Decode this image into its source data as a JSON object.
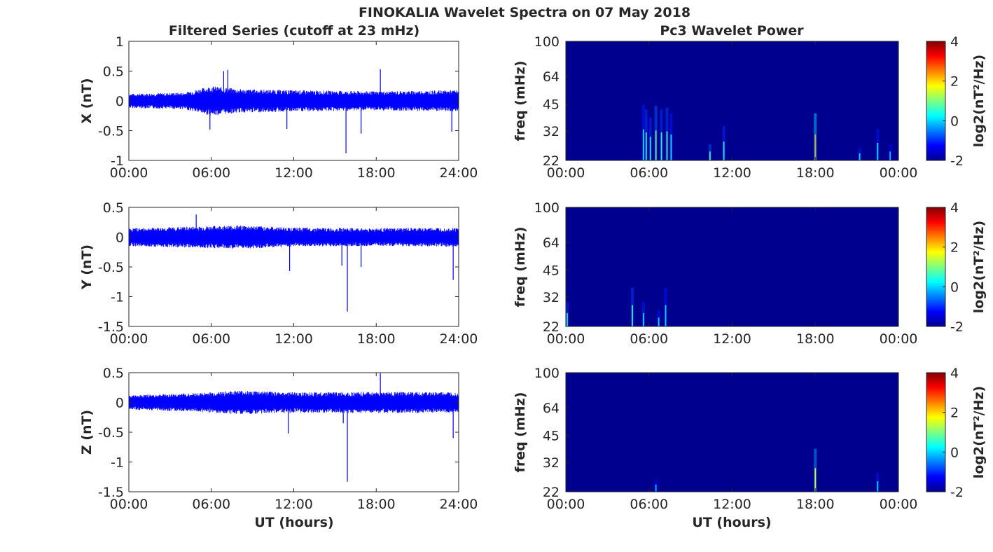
{
  "figure": {
    "title": "FINOKALIA Wavelet Spectra on 07 May 2018",
    "left_column_title": "Filtered Series (cutoff at 23 mHz)",
    "right_column_title": "Pc3 Wavelet Power",
    "xlabel": "UT (hours)"
  },
  "colors": {
    "series_line": "#0000ff",
    "spectrogram_background": "#00008f",
    "colormap": "jet"
  },
  "chart_data": [
    {
      "type": "line",
      "component": "X",
      "ylabel": "X (nT)",
      "xlim": [
        0,
        24
      ],
      "xticks": [
        "00:00",
        "06:00",
        "12:00",
        "18:00",
        "24:00"
      ],
      "ylim": [
        -1,
        1
      ],
      "yticks": [
        "1",
        "0.5",
        "0",
        "-0.5",
        "-1"
      ],
      "band_envelope": [
        [
          0,
          0.12
        ],
        [
          4,
          0.14
        ],
        [
          6,
          0.25
        ],
        [
          8,
          0.2
        ],
        [
          12,
          0.18
        ],
        [
          18,
          0.16
        ],
        [
          24,
          0.18
        ]
      ],
      "spikes": [
        {
          "t": 5.9,
          "v": -0.48
        },
        {
          "t": 6.9,
          "v": 0.5
        },
        {
          "t": 7.2,
          "v": 0.52
        },
        {
          "t": 11.5,
          "v": -0.47
        },
        {
          "t": 15.8,
          "v": -0.88
        },
        {
          "t": 16.9,
          "v": -0.55
        },
        {
          "t": 18.3,
          "v": 0.53
        },
        {
          "t": 23.5,
          "v": -0.52
        }
      ]
    },
    {
      "type": "line",
      "component": "Y",
      "ylabel": "Y (nT)",
      "xlim": [
        0,
        24
      ],
      "xticks": [
        "00:00",
        "06:00",
        "12:00",
        "18:00",
        "24:00"
      ],
      "ylim": [
        -1.5,
        0.5
      ],
      "yticks": [
        "0.5",
        "0",
        "-0.5",
        "-1",
        "-1.5"
      ],
      "band_envelope": [
        [
          0,
          0.15
        ],
        [
          5,
          0.18
        ],
        [
          8,
          0.2
        ],
        [
          12,
          0.16
        ],
        [
          18,
          0.15
        ],
        [
          24,
          0.16
        ]
      ],
      "spikes": [
        {
          "t": 4.9,
          "v": 0.38
        },
        {
          "t": 11.7,
          "v": -0.57
        },
        {
          "t": 15.5,
          "v": -0.48
        },
        {
          "t": 15.9,
          "v": -1.25
        },
        {
          "t": 16.9,
          "v": -0.5
        },
        {
          "t": 23.6,
          "v": -0.72
        }
      ]
    },
    {
      "type": "line",
      "component": "Z",
      "ylabel": "Z (nT)",
      "xlim": [
        0,
        24
      ],
      "xticks": [
        "00:00",
        "06:00",
        "12:00",
        "18:00",
        "24:00"
      ],
      "ylim": [
        -1.5,
        0.5
      ],
      "yticks": [
        "0.5",
        "0",
        "-0.5",
        "-1",
        "-1.5"
      ],
      "band_envelope": [
        [
          0,
          0.12
        ],
        [
          5,
          0.16
        ],
        [
          8,
          0.2
        ],
        [
          12,
          0.17
        ],
        [
          18,
          0.18
        ],
        [
          24,
          0.17
        ]
      ],
      "spikes": [
        {
          "t": 11.6,
          "v": -0.52
        },
        {
          "t": 15.6,
          "v": -0.35
        },
        {
          "t": 15.9,
          "v": -1.33
        },
        {
          "t": 18.3,
          "v": 0.49
        },
        {
          "t": 23.6,
          "v": -0.6
        }
      ]
    },
    {
      "type": "heatmap",
      "component": "X",
      "ylabel": "freq (mHz)",
      "xlim": [
        0,
        24
      ],
      "xticks": [
        "00:00",
        "06:00",
        "12:00",
        "18:00",
        "00:00"
      ],
      "ylim": [
        22,
        100
      ],
      "yscale": "log",
      "yticks": [
        "100",
        "64",
        "45",
        "32",
        "22"
      ],
      "colorbar_label": "log2(nT²/Hz)",
      "colorbar_ticks": [
        "4",
        "2",
        "0",
        "-2"
      ],
      "clim": [
        -2,
        4
      ],
      "streaks": [
        {
          "t": 5.6,
          "top_freq": 45,
          "level": -1.2
        },
        {
          "t": 5.8,
          "top_freq": 42,
          "level": -0.9
        },
        {
          "t": 6.1,
          "top_freq": 38,
          "level": -1.0
        },
        {
          "t": 6.5,
          "top_freq": 44,
          "level": -0.5
        },
        {
          "t": 6.9,
          "top_freq": 42,
          "level": -0.9
        },
        {
          "t": 7.3,
          "top_freq": 43,
          "level": -0.8
        },
        {
          "t": 7.6,
          "top_freq": 40,
          "level": -1.2
        },
        {
          "t": 10.4,
          "top_freq": 27,
          "level": -0.6
        },
        {
          "t": 11.4,
          "top_freq": 34,
          "level": -1.0
        },
        {
          "t": 18.0,
          "top_freq": 40,
          "level": 0.8
        },
        {
          "t": 21.2,
          "top_freq": 26,
          "level": -1.3
        },
        {
          "t": 22.5,
          "top_freq": 33,
          "level": -1.2
        },
        {
          "t": 23.4,
          "top_freq": 27,
          "level": -1.5
        }
      ]
    },
    {
      "type": "heatmap",
      "component": "Y",
      "ylabel": "freq (mHz)",
      "xlim": [
        0,
        24
      ],
      "xticks": [
        "00:00",
        "06:00",
        "12:00",
        "18:00",
        "00:00"
      ],
      "ylim": [
        22,
        100
      ],
      "yscale": "log",
      "yticks": [
        "100",
        "64",
        "45",
        "32",
        "22"
      ],
      "colorbar_label": "log2(nT²/Hz)",
      "colorbar_ticks": [
        "4",
        "2",
        "0",
        "-2"
      ],
      "clim": [
        -2,
        4
      ],
      "streaks": [
        {
          "t": 0.1,
          "top_freq": 30,
          "level": -1.0
        },
        {
          "t": 4.8,
          "top_freq": 36,
          "level": -0.8
        },
        {
          "t": 5.6,
          "top_freq": 30,
          "level": -1.2
        },
        {
          "t": 6.7,
          "top_freq": 27,
          "level": -1.3
        },
        {
          "t": 7.2,
          "top_freq": 36,
          "level": -1.3
        }
      ]
    },
    {
      "type": "heatmap",
      "component": "Z",
      "ylabel": "freq (mHz)",
      "xlim": [
        0,
        24
      ],
      "xticks": [
        "00:00",
        "06:00",
        "12:00",
        "18:00",
        "00:00"
      ],
      "ylim": [
        22,
        100
      ],
      "yscale": "log",
      "yticks": [
        "100",
        "64",
        "45",
        "32",
        "22"
      ],
      "colorbar_label": "log2(nT²/Hz)",
      "colorbar_ticks": [
        "4",
        "2",
        "0",
        "-2"
      ],
      "clim": [
        -2,
        4
      ],
      "streaks": [
        {
          "t": 6.5,
          "top_freq": 26,
          "level": -1.5
        },
        {
          "t": 18.0,
          "top_freq": 38,
          "level": 0.3
        },
        {
          "t": 22.5,
          "top_freq": 28,
          "level": -1.3
        }
      ]
    }
  ]
}
